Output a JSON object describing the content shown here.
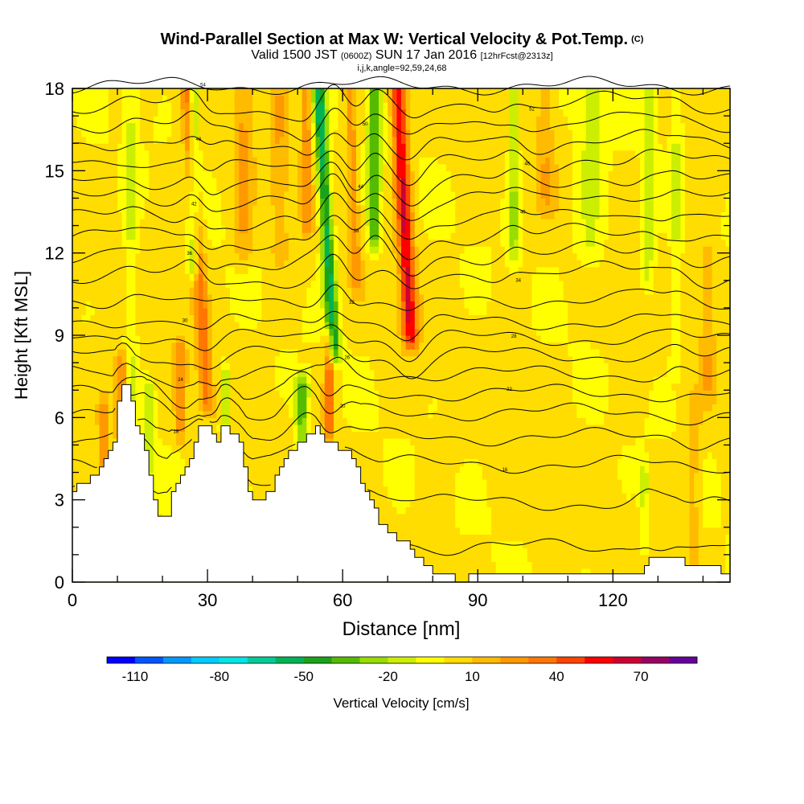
{
  "header": {
    "title": "Wind-Parallel Section at Max W: Vertical Velocity & Pot.Temp.",
    "copyright": "(C)",
    "valid_prefix": "Valid 1500 JST",
    "valid_zulu": "(0600Z)",
    "valid_date": "SUN 17 Jan 2016",
    "forecast": "[12hrFcst@2313z]",
    "indices": "i,j,k,angle=92,59,24,68"
  },
  "chart_data": {
    "type": "heatmap",
    "xlabel": "Distance [nm]",
    "ylabel": "Height [Kft MSL]",
    "xlim": [
      0,
      146
    ],
    "ylim": [
      0,
      18
    ],
    "x_ticks": [
      0,
      30,
      60,
      90,
      120
    ],
    "y_ticks": [
      0,
      3,
      6,
      9,
      12,
      15,
      18
    ],
    "colorbar": {
      "label": "Vertical Velocity [cm/s]",
      "range": [
        -120,
        90
      ],
      "step": 10,
      "tick_labels": [
        -110,
        -80,
        -50,
        -20,
        10,
        40,
        70
      ],
      "colors": [
        "#0000ff",
        "#0055ff",
        "#0099ff",
        "#00ccff",
        "#00e6e6",
        "#00cc99",
        "#00b355",
        "#1aa31a",
        "#55bb00",
        "#99dd00",
        "#ccee00",
        "#ffff00",
        "#ffdd00",
        "#ffbb00",
        "#ff9900",
        "#ff7700",
        "#ff4400",
        "#ff0000",
        "#cc0033",
        "#990066",
        "#660099"
      ]
    },
    "terrain": [
      [
        0,
        3.3
      ],
      [
        2,
        3.6
      ],
      [
        5,
        3.9
      ],
      [
        7,
        4.5
      ],
      [
        9,
        5.2
      ],
      [
        10,
        6.5
      ],
      [
        11,
        7.1
      ],
      [
        12,
        7.1
      ],
      [
        13,
        6.5
      ],
      [
        14,
        5.8
      ],
      [
        15,
        5.3
      ],
      [
        16,
        4.8
      ],
      [
        17,
        3.9
      ],
      [
        18,
        3.1
      ],
      [
        19,
        2.4
      ],
      [
        21,
        2.4
      ],
      [
        22,
        3.3
      ],
      [
        24,
        3.8
      ],
      [
        26,
        4.6
      ],
      [
        27,
        5.2
      ],
      [
        28,
        5.8
      ],
      [
        30,
        5.8
      ],
      [
        31,
        5.4
      ],
      [
        32,
        5.2
      ],
      [
        33,
        5.8
      ],
      [
        35,
        5.5
      ],
      [
        37,
        5.0
      ],
      [
        38,
        4.3
      ],
      [
        39,
        3.4
      ],
      [
        40,
        2.9
      ],
      [
        42,
        3.1
      ],
      [
        44,
        3.4
      ],
      [
        46,
        4.1
      ],
      [
        48,
        4.7
      ],
      [
        50,
        5.0
      ],
      [
        52,
        5.4
      ],
      [
        54,
        5.6
      ],
      [
        56,
        5.1
      ],
      [
        58,
        5.0
      ],
      [
        59,
        4.9
      ],
      [
        60,
        4.9
      ],
      [
        62,
        4.5
      ],
      [
        64,
        3.7
      ],
      [
        66,
        3.0
      ],
      [
        68,
        2.2
      ],
      [
        70,
        1.8
      ],
      [
        72,
        1.6
      ],
      [
        74,
        1.4
      ],
      [
        76,
        1.0
      ],
      [
        78,
        0.6
      ],
      [
        80,
        0.4
      ],
      [
        83,
        0.2
      ],
      [
        86,
        0.1
      ],
      [
        90,
        0.2
      ],
      [
        94,
        0.2
      ],
      [
        98,
        0.2
      ],
      [
        102,
        0.3
      ],
      [
        106,
        0.3
      ],
      [
        110,
        0.3
      ],
      [
        114,
        0.3
      ],
      [
        118,
        0.3
      ],
      [
        122,
        0.3
      ],
      [
        126,
        0.3
      ],
      [
        128,
        0.8
      ],
      [
        130,
        1.0
      ],
      [
        134,
        1.0
      ],
      [
        136,
        0.7
      ],
      [
        138,
        0.5
      ],
      [
        142,
        0.5
      ],
      [
        144,
        0.4
      ],
      [
        146,
        0.3
      ]
    ],
    "w_features": [
      {
        "x": 11,
        "ylo": 5.5,
        "yhi": 8.0,
        "w": 32,
        "sx": 1.5,
        "slope": 0
      },
      {
        "x": 7,
        "ylo": 4.2,
        "yhi": 6.4,
        "w": 24,
        "sx": 1.4,
        "slope": 0
      },
      {
        "x": 13,
        "ylo": 6.5,
        "yhi": 18,
        "w": -15,
        "sx": 1.5,
        "slope": 0
      },
      {
        "x": 17,
        "ylo": 4.5,
        "yhi": 7.0,
        "w": -22,
        "sx": 1.3,
        "slope": 0
      },
      {
        "x": 24,
        "ylo": 5.5,
        "yhi": 8.5,
        "w": 22,
        "sx": 1.2,
        "slope": 0
      },
      {
        "x": 27,
        "ylo": 11.5,
        "yhi": 18,
        "w": -34,
        "sx": 1.2,
        "slope": 0
      },
      {
        "x": 30,
        "ylo": 6.5,
        "yhi": 18,
        "w": 32,
        "sx": 1.5,
        "slope": -0.4
      },
      {
        "x": 34,
        "ylo": 5.5,
        "yhi": 7.5,
        "w": -28,
        "sx": 1.1,
        "slope": 0
      },
      {
        "x": 38,
        "ylo": 12.0,
        "yhi": 18,
        "w": 18,
        "sx": 2.0,
        "slope": 0
      },
      {
        "x": 46,
        "ylo": 12.0,
        "yhi": 18,
        "w": 14,
        "sx": 2.0,
        "slope": 0
      },
      {
        "x": 51,
        "ylo": 4.5,
        "yhi": 7.2,
        "w": -38,
        "sx": 1.5,
        "slope": 0
      },
      {
        "x": 52,
        "ylo": 13.0,
        "yhi": 18,
        "w": 24,
        "sx": 1.2,
        "slope": 0
      },
      {
        "x": 57,
        "ylo": 5.5,
        "yhi": 8.8,
        "w": 36,
        "sx": 1.1,
        "slope": 0
      },
      {
        "x": 58,
        "ylo": 8.5,
        "yhi": 18,
        "w": -58,
        "sx": 1.4,
        "slope": -0.35
      },
      {
        "x": 63,
        "ylo": 11.0,
        "yhi": 18,
        "w": 22,
        "sx": 1.2,
        "slope": -0.2
      },
      {
        "x": 67,
        "ylo": 12.5,
        "yhi": 18,
        "w": -40,
        "sx": 1.4,
        "slope": 0
      },
      {
        "x": 75,
        "ylo": 9.0,
        "yhi": 18,
        "w": 58,
        "sx": 1.7,
        "slope": -0.3
      },
      {
        "x": 98,
        "ylo": 12.0,
        "yhi": 18,
        "w": -24,
        "sx": 1.3,
        "slope": 0
      },
      {
        "x": 105,
        "ylo": 14.0,
        "yhi": 18,
        "w": 14,
        "sx": 2.0,
        "slope": 0
      },
      {
        "x": 115,
        "ylo": 12.0,
        "yhi": 18,
        "w": -16,
        "sx": 3.5,
        "slope": 0
      },
      {
        "x": 128,
        "ylo": 11.0,
        "yhi": 18,
        "w": -18,
        "sx": 1.5,
        "slope": 0
      },
      {
        "x": 134,
        "ylo": 8.0,
        "yhi": 18,
        "w": -14,
        "sx": 1.2,
        "slope": 0
      },
      {
        "x": 138,
        "ylo": 1.0,
        "yhi": 6.5,
        "w": 14,
        "sx": 1.5,
        "slope": 0
      },
      {
        "x": 141,
        "ylo": 7.0,
        "yhi": 12.0,
        "w": 14,
        "sx": 1.5,
        "slope": 0
      },
      {
        "x": 127,
        "ylo": 1.5,
        "yhi": 4.0,
        "w": -16,
        "sx": 1.0,
        "slope": 0
      }
    ],
    "theta_levels": [
      0.9,
      2.9,
      4.3,
      5.3,
      6.2,
      6.9,
      7.6,
      8.3,
      8.9,
      9.5,
      10.3,
      11.2,
      11.9,
      12.6,
      13.3,
      14.0,
      14.6,
      15.3,
      16.0,
      16.7,
      17.4,
      18.1
    ],
    "theta_labels": [
      "16",
      "14",
      "16",
      "18",
      "20",
      "22",
      "24",
      "26",
      "28",
      "30",
      "32",
      "34",
      "36",
      "38",
      "40",
      "42",
      "44",
      "46",
      "48",
      "50",
      "52",
      "54"
    ]
  }
}
